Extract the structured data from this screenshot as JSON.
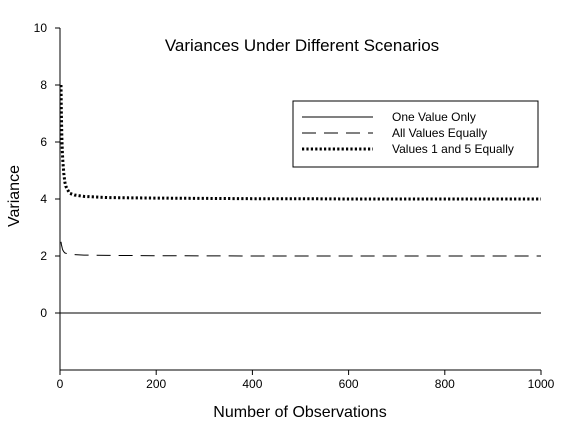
{
  "chart_data": {
    "type": "line",
    "title": "Variances Under Different Scenarios",
    "xlabel": "Number of Observations",
    "ylabel": "Variance",
    "xlim": [
      0,
      1000
    ],
    "ylim": [
      -2,
      10
    ],
    "xticks": [
      0,
      200,
      400,
      600,
      800,
      1000
    ],
    "yticks": [
      0,
      2,
      4,
      6,
      8,
      10
    ],
    "grid": false,
    "legend_position": "top-right",
    "series": [
      {
        "name": "One Value Only",
        "style": "solid",
        "x": [
          1,
          1000
        ],
        "y": [
          0,
          0
        ]
      },
      {
        "name": "All Values Equally",
        "style": "dashed",
        "x": [
          2,
          3,
          4,
          5,
          6,
          8,
          10,
          15,
          20,
          30,
          50,
          100,
          200,
          400,
          600,
          800,
          1000
        ],
        "y": [
          2.5,
          2.4,
          2.33,
          2.25,
          2.2,
          2.15,
          2.11,
          2.08,
          2.06,
          2.05,
          2.03,
          2.02,
          2.01,
          2.0,
          2.0,
          2.0,
          2.0
        ]
      },
      {
        "name": "Values 1 and 5 Equally",
        "style": "dotted",
        "x": [
          2,
          3,
          4,
          5,
          6,
          8,
          10,
          12,
          15,
          20,
          30,
          50,
          100,
          200,
          300,
          400,
          500,
          600,
          800,
          1000
        ],
        "y": [
          8.0,
          6.9,
          6.1,
          5.6,
          5.3,
          4.9,
          4.6,
          4.45,
          4.35,
          4.2,
          4.14,
          4.09,
          4.05,
          4.03,
          4.02,
          4.01,
          4.01,
          4.0,
          4.0,
          4.0
        ]
      }
    ]
  }
}
